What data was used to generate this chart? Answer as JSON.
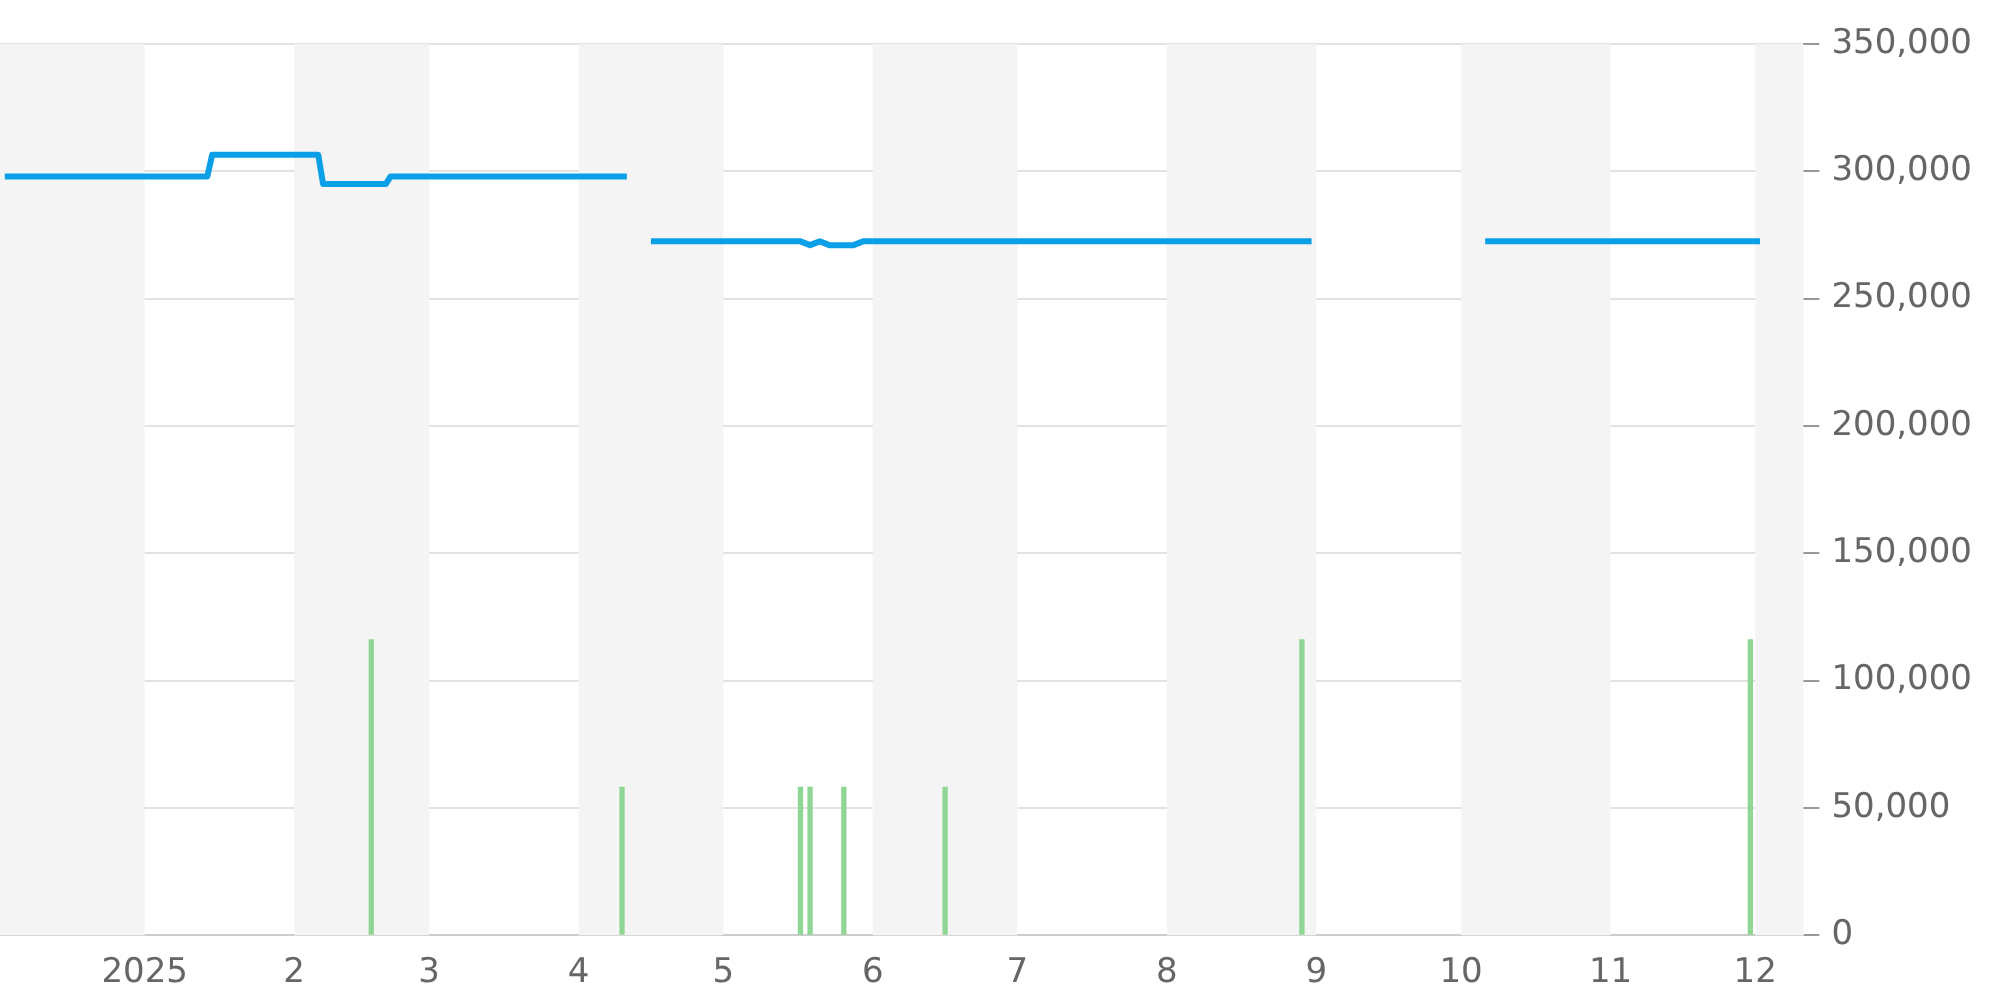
{
  "chart_data": {
    "type": "line",
    "x": [
      "2024-12-03",
      "2025-01-14",
      "2025-01-15",
      "2025-02-06",
      "2025-02-07",
      "2025-02-20",
      "2025-02-21",
      "2025-04-11",
      "2025-04-13",
      "2025-04-16",
      "2025-05-17",
      "2025-05-19",
      "2025-05-21",
      "2025-05-23",
      "2025-05-28",
      "2025-05-30",
      "2025-08-31",
      "2025-09-20",
      "2025-10-06",
      "2025-12-02"
    ],
    "series": [
      {
        "color": "#0a9fe6",
        "values": [
          298000,
          298000,
          306500,
          306500,
          295000,
          295000,
          298000,
          298000,
          null,
          272500,
          272500,
          271000,
          272500,
          271000,
          271000,
          272500,
          272500,
          null,
          272500,
          272500
        ]
      },
      {
        "type": "bar",
        "color": "#8fd694",
        "x": [
          "2025-02-17",
          "2025-04-10",
          "2025-05-17",
          "2025-05-19",
          "2025-05-26",
          "2025-06-16",
          "2025-08-29",
          "2025-11-30"
        ],
        "values": [
          116000,
          58000,
          58000,
          58000,
          58000,
          58000,
          116000,
          116000
        ]
      }
    ],
    "xlim": [
      "2024-12-02",
      "2025-12-11"
    ],
    "xticks": [
      {
        "value": "2025-01-01",
        "label": "2025"
      },
      {
        "value": "2025-02-01",
        "label": "2"
      },
      {
        "value": "2025-03-01",
        "label": "3"
      },
      {
        "value": "2025-04-01",
        "label": "4"
      },
      {
        "value": "2025-05-01",
        "label": "5"
      },
      {
        "value": "2025-06-01",
        "label": "6"
      },
      {
        "value": "2025-07-01",
        "label": "7"
      },
      {
        "value": "2025-08-01",
        "label": "8"
      },
      {
        "value": "2025-09-01",
        "label": "9"
      },
      {
        "value": "2025-10-01",
        "label": "10"
      },
      {
        "value": "2025-11-01",
        "label": "11"
      },
      {
        "value": "2025-12-01",
        "label": "12"
      }
    ],
    "ylim": [
      0,
      350000
    ],
    "yticks": [
      0,
      {
        "value": 50000,
        "label": "50,000"
      },
      {
        "value": 100000,
        "label": "100,000"
      },
      {
        "value": 150000,
        "label": "150,000"
      },
      {
        "value": 200000,
        "label": "200,000"
      },
      {
        "value": 250000,
        "label": "250,000"
      },
      {
        "value": 300000,
        "label": "300,000"
      },
      {
        "value": 350000,
        "label": "350,000"
      }
    ],
    "bands": [
      {
        "axis": "x",
        "from": "2024-12-02",
        "to": "2025-01-01",
        "color": "#f4f4f4"
      },
      {
        "axis": "x",
        "from": "2025-02-01",
        "to": "2025-03-01",
        "color": "#f4f4f4"
      },
      {
        "axis": "x",
        "from": "2025-04-01",
        "to": "2025-05-01",
        "color": "#f4f4f4"
      },
      {
        "axis": "x",
        "from": "2025-06-01",
        "to": "2025-07-01",
        "color": "#f4f4f4"
      },
      {
        "axis": "x",
        "from": "2025-08-01",
        "to": "2025-09-01",
        "color": "#f4f4f4"
      },
      {
        "axis": "x",
        "from": "2025-10-01",
        "to": "2025-11-01",
        "color": "#f4f4f4"
      },
      {
        "axis": "x",
        "from": "2025-12-01",
        "to": "2025-12-11",
        "color": "#f4f4f4"
      }
    ],
    "grid": "y",
    "legend": false,
    "marker": "none",
    "line_style": "solid"
  }
}
